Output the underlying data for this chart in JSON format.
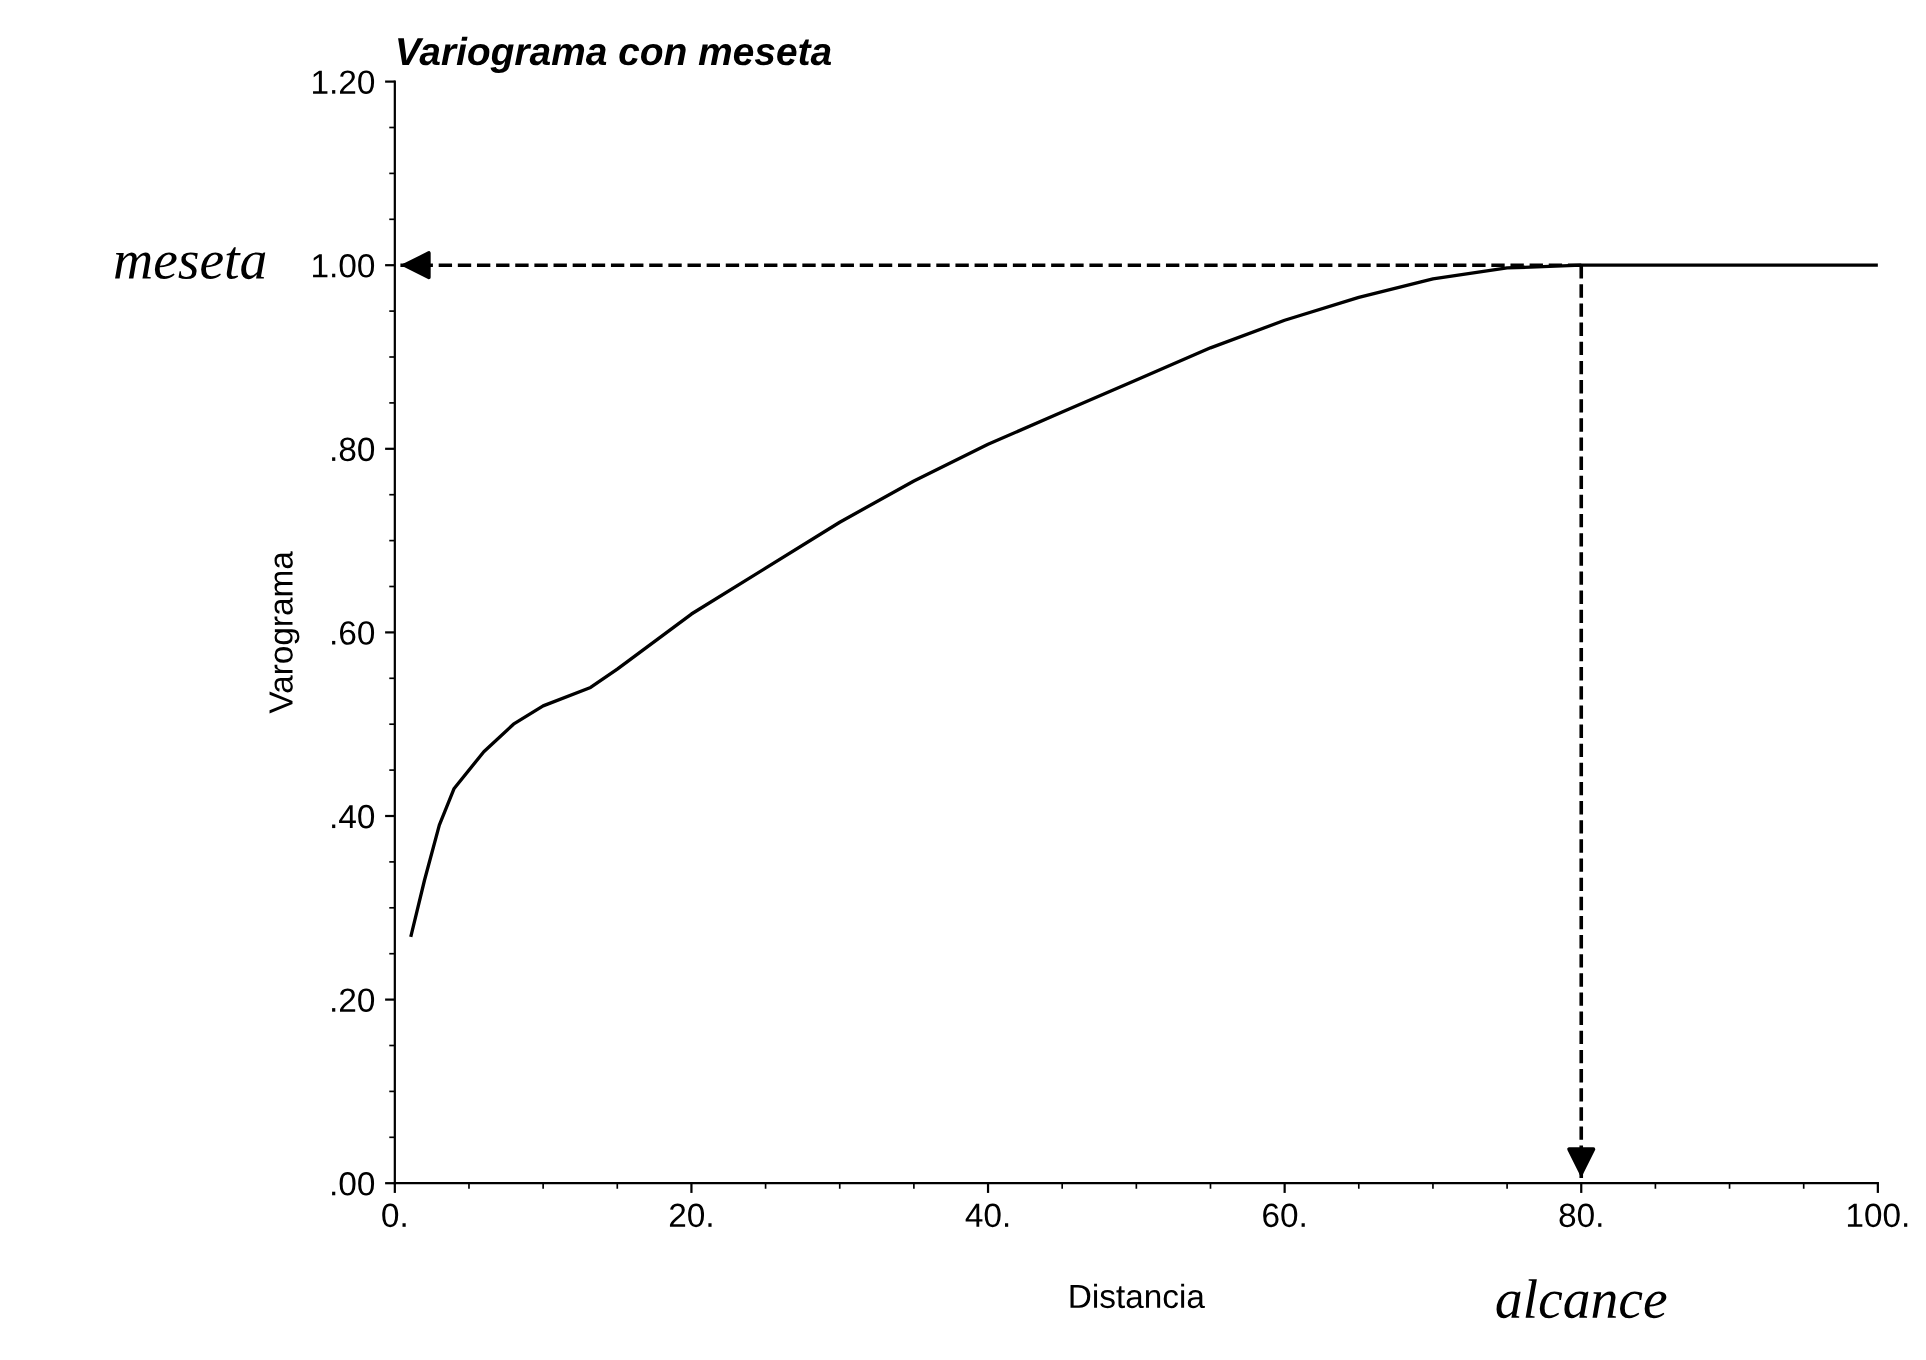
{
  "chart_data": {
    "type": "line",
    "title": "Variograma con meseta",
    "xlabel": "Distancia",
    "ylabel": "Varograma",
    "x": [
      1.1,
      2,
      3,
      4,
      6,
      8,
      10,
      13.2,
      15,
      20,
      25,
      30,
      35,
      40,
      45,
      50,
      55,
      60,
      65,
      70,
      75,
      80,
      100
    ],
    "series": [
      {
        "color": "#000000",
        "values": [
          0.27,
          0.33,
          0.39,
          0.43,
          0.47,
          0.5,
          0.52,
          0.54,
          0.56,
          0.62,
          0.67,
          0.72,
          0.765,
          0.805,
          0.84,
          0.875,
          0.91,
          0.94,
          0.965,
          0.985,
          0.997,
          1.0,
          1.0
        ]
      }
    ],
    "xlim": [
      0,
      100
    ],
    "ylim": [
      0,
      1.2
    ],
    "xticks": [
      {
        "value": 0,
        "label": "0."
      },
      {
        "value": 20,
        "label": "20."
      },
      {
        "value": 40,
        "label": "40."
      },
      {
        "value": 60,
        "label": "60."
      },
      {
        "value": 80,
        "label": "80."
      },
      {
        "value": 100,
        "label": "100."
      }
    ],
    "yticks": [
      {
        "value": 0,
        "label": ".00"
      },
      {
        "value": 0.2,
        "label": ".20"
      },
      {
        "value": 0.4,
        "label": ".40"
      },
      {
        "value": 0.6,
        "label": ".60"
      },
      {
        "value": 0.8,
        "label": ".80"
      },
      {
        "value": 1.0,
        "label": "1.00"
      },
      {
        "value": 1.2,
        "label": "1.20"
      }
    ],
    "ref_lines": [
      {
        "axis": "y",
        "value": 1.0,
        "label": "meseta",
        "line_style": "dashed",
        "color": "#000000"
      },
      {
        "axis": "x",
        "value": 80,
        "label": "alcance",
        "line_style": "dashed",
        "color": "#000000"
      }
    ],
    "grid": false,
    "legend": false,
    "marker": "none",
    "line_style": "solid"
  }
}
